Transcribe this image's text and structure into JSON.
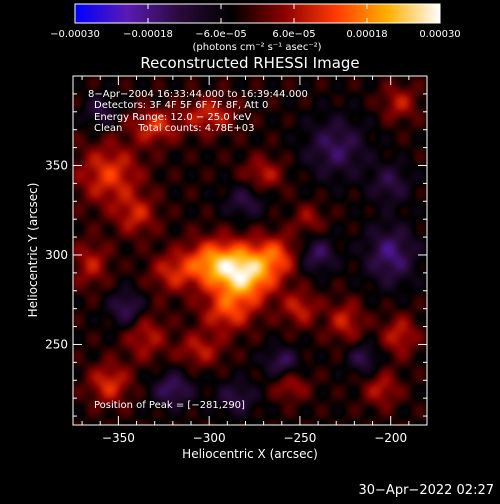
{
  "chart_data": {
    "type": "heatmap",
    "title": "Reconstructed RHESSI Image",
    "xlabel": "Heliocentric X (arcsec)",
    "ylabel": "Heliocentric Y (arcsec)",
    "xlim": [
      -375,
      -180
    ],
    "ylim": [
      205,
      400
    ],
    "x_ticks": [
      -350,
      -300,
      -250,
      -200
    ],
    "y_ticks": [
      250,
      300,
      350
    ],
    "x_tick_labels": [
      "−350",
      "−300",
      "−250",
      "−200"
    ],
    "y_tick_labels": [
      "250",
      "300",
      "350"
    ],
    "colorbar": {
      "range": [
        -0.0003,
        0.0003
      ],
      "tick_values": [
        -0.0003,
        -0.00018,
        -6e-05,
        6e-05,
        0.00018,
        0.0003
      ],
      "tick_labels": [
        "−0.00030",
        "−0.00018",
        "−6.0e−05",
        "6.0e−05",
        "0.00018",
        "0.00030"
      ],
      "units": "(photons cm⁻² s⁻¹ asec⁻²)",
      "colors": [
        "#0000ff",
        "#5a1ab4",
        "#2a0a3a",
        "#000000",
        "#8a0000",
        "#ff3a00",
        "#ffb000",
        "#ffffff"
      ]
    },
    "annotations": [
      "8−Apr−2004 16:33:44.000 to 16:39:44.000",
      "Detectors: 3F 4F 5F 6F 7F 8F, Att 0",
      "Energy Range: 12.0 − 25.0 keV",
      "Clean     Total counts: 4.78E+03"
    ],
    "peak_label": "Position of Peak = [−281,290]",
    "peak": [
      -281,
      290
    ],
    "sources": [
      {
        "x": -281,
        "y": 290,
        "sx": 12,
        "sy": 11,
        "amp": 0.0003
      },
      {
        "x": -300,
        "y": 296,
        "sx": 10,
        "sy": 9,
        "amp": 0.00016
      },
      {
        "x": -262,
        "y": 300,
        "sx": 8,
        "sy": 8,
        "amp": 0.00012
      },
      {
        "x": -290,
        "y": 268,
        "sx": 10,
        "sy": 8,
        "amp": 0.00013
      },
      {
        "x": -250,
        "y": 270,
        "sx": 7,
        "sy": 7,
        "amp": 0.00011
      },
      {
        "x": -320,
        "y": 290,
        "sx": 9,
        "sy": 8,
        "amp": 0.00011
      },
      {
        "x": -305,
        "y": 247,
        "sx": 9,
        "sy": 7,
        "amp": 0.0001
      },
      {
        "x": -335,
        "y": 255,
        "sx": 8,
        "sy": 10,
        "amp": 0.0001
      },
      {
        "x": -355,
        "y": 345,
        "sx": 12,
        "sy": 12,
        "amp": 0.00014
      },
      {
        "x": -330,
        "y": 372,
        "sx": 9,
        "sy": 7,
        "amp": 0.00013
      },
      {
        "x": -300,
        "y": 378,
        "sx": 10,
        "sy": 7,
        "amp": 0.00012
      },
      {
        "x": -340,
        "y": 322,
        "sx": 8,
        "sy": 8,
        "amp": 0.00011
      },
      {
        "x": -365,
        "y": 295,
        "sx": 7,
        "sy": 9,
        "amp": 0.0001
      },
      {
        "x": -355,
        "y": 228,
        "sx": 8,
        "sy": 8,
        "amp": 0.00013
      },
      {
        "x": -270,
        "y": 345,
        "sx": 8,
        "sy": 7,
        "amp": 0.0001
      },
      {
        "x": -245,
        "y": 320,
        "sx": 6,
        "sy": 6,
        "amp": 8e-05
      },
      {
        "x": -225,
        "y": 263,
        "sx": 7,
        "sy": 8,
        "amp": 0.00011
      },
      {
        "x": -195,
        "y": 255,
        "sx": 7,
        "sy": 8,
        "amp": 0.00011
      },
      {
        "x": -205,
        "y": 225,
        "sx": 7,
        "sy": 7,
        "amp": 0.0001
      },
      {
        "x": -255,
        "y": 227,
        "sx": 7,
        "sy": 6,
        "amp": 9e-05
      },
      {
        "x": -195,
        "y": 385,
        "sx": 7,
        "sy": 7,
        "amp": 0.0001
      },
      {
        "x": -260,
        "y": 240,
        "sx": 7,
        "sy": 6,
        "amp": -0.00012
      },
      {
        "x": -320,
        "y": 225,
        "sx": 8,
        "sy": 7,
        "amp": -0.00013
      },
      {
        "x": -240,
        "y": 300,
        "sx": 7,
        "sy": 7,
        "amp": -0.00012
      },
      {
        "x": -230,
        "y": 360,
        "sx": 12,
        "sy": 12,
        "amp": -0.00012
      },
      {
        "x": -200,
        "y": 300,
        "sx": 10,
        "sy": 12,
        "amp": -0.00014
      },
      {
        "x": -345,
        "y": 270,
        "sx": 7,
        "sy": 7,
        "amp": -0.00013
      },
      {
        "x": -280,
        "y": 330,
        "sx": 8,
        "sy": 7,
        "amp": -0.0001
      },
      {
        "x": -360,
        "y": 380,
        "sx": 6,
        "sy": 6,
        "amp": -0.0001
      },
      {
        "x": -200,
        "y": 340,
        "sx": 8,
        "sy": 8,
        "amp": -0.0001
      },
      {
        "x": -285,
        "y": 220,
        "sx": 8,
        "sy": 7,
        "amp": -0.0001
      },
      {
        "x": -215,
        "y": 242,
        "sx": 6,
        "sy": 6,
        "amp": -0.00011
      }
    ]
  },
  "timestamp": "30−Apr−2022 02:27"
}
